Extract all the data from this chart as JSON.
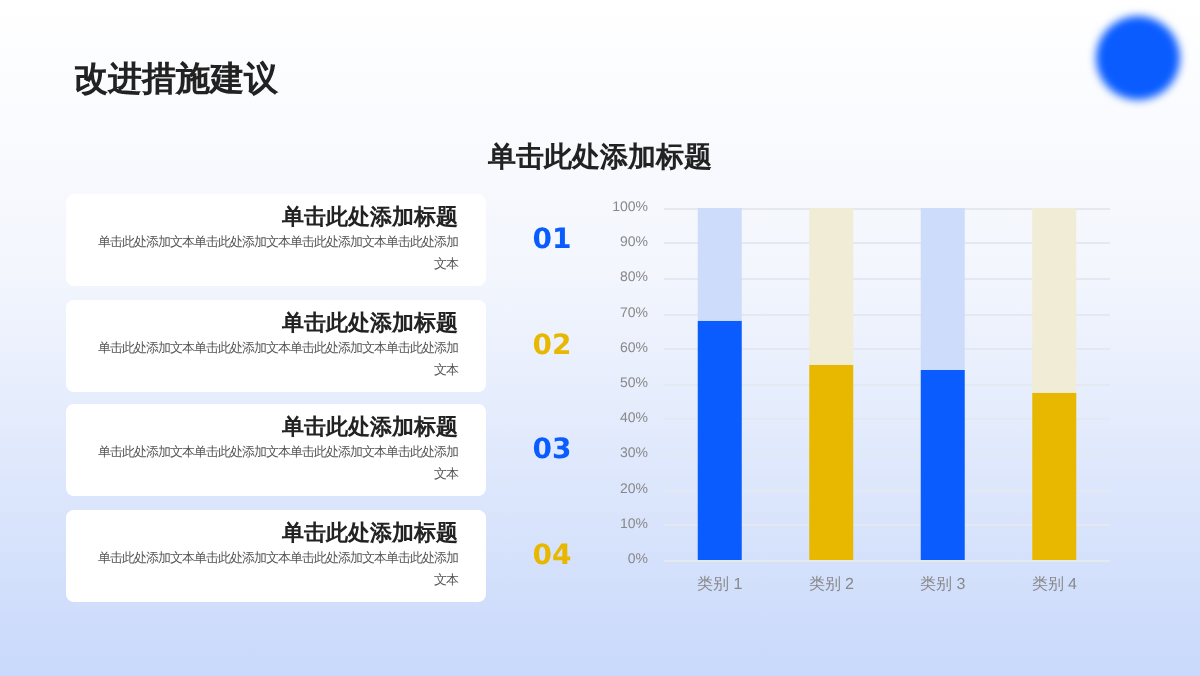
{
  "chart_data": {
    "type": "bar",
    "title": "改进措施建议",
    "subtitle": "单击此处添加标题",
    "annotations": [
      "单击此处添加标题",
      "单击此处添加文本单击此处添加文本单击此处添加文本单击此处添加文本",
      "01",
      "单击此处添加标题",
      "单击此处添加文本单击此处添加文本单击此处添加文本单击此处添加文本",
      "02",
      "单击此处添加标题",
      "单击此处添加文本单击此处添加文本单击此处添加文本单击此处添加文本",
      "03",
      "单击此处添加标题",
      "单击此处添加文本单击此处添加文本单击此处添加文本单击此处添加文本",
      "04"
    ],
    "categories": [
      "类别 1",
      "类别 2",
      "类别 3",
      "类别 4"
    ],
    "stacked": true,
    "series": [
      {
        "colors": [
          "#0a5cff",
          "#e8b800",
          "#0a5cff",
          "#e8b800"
        ],
        "values": [
          68,
          55.5,
          54,
          47.5
        ]
      },
      {
        "colors": [
          "#cddcfb",
          "#f1ecd6",
          "#cddcfb",
          "#f1ecd6"
        ],
        "values": [
          32,
          44.5,
          46,
          52.5
        ]
      }
    ],
    "ylim": [
      0,
      100
    ],
    "yticks": [
      {
        "value": 0,
        "label": "0%"
      },
      {
        "value": 10,
        "label": "10%"
      },
      {
        "value": 20,
        "label": "20%"
      },
      {
        "value": 30,
        "label": "30%"
      },
      {
        "value": 40,
        "label": "40%"
      },
      {
        "value": 50,
        "label": "50%"
      },
      {
        "value": 60,
        "label": "60%"
      },
      {
        "value": 70,
        "label": "70%"
      },
      {
        "value": 80,
        "label": "80%"
      },
      {
        "value": 90,
        "label": "90%"
      },
      {
        "value": 100,
        "label": "100%"
      }
    ],
    "grid": "y"
  }
}
